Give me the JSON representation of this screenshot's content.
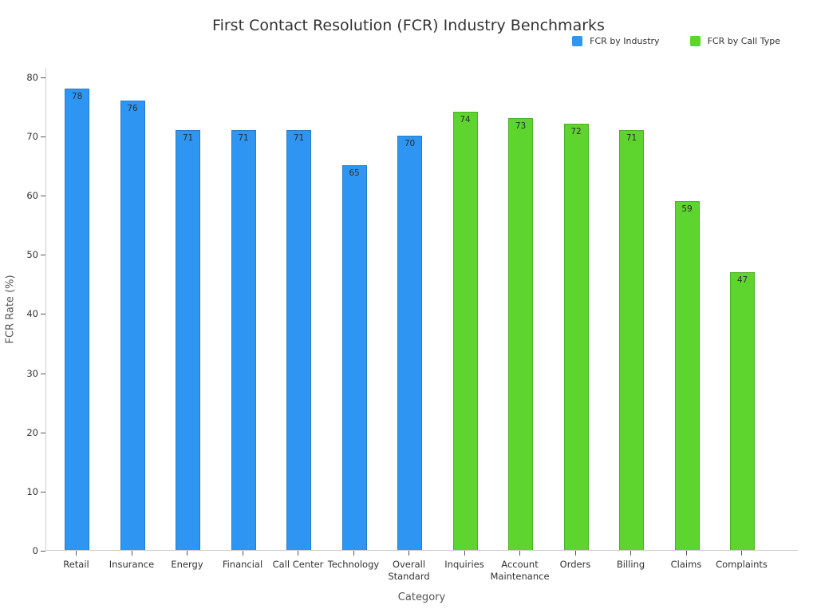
{
  "chart_data": {
    "type": "bar",
    "title": "First Contact Resolution (FCR) Industry Benchmarks",
    "xlabel": "Category",
    "ylabel": "FCR Rate (%)",
    "ylim": [
      0,
      81.6
    ],
    "yticks": [
      0,
      10,
      20,
      30,
      40,
      50,
      60,
      70,
      80
    ],
    "grid": false,
    "legend_position": "top-right",
    "bar_label_placement": "inside-top",
    "categories": [
      "Retail",
      "Insurance",
      "Energy",
      "Financial",
      "Call Center",
      "Technology",
      "Overall Standard",
      "Inquiries",
      "Account Maintenance",
      "Orders",
      "Billing",
      "Claims",
      "Complaints"
    ],
    "series": [
      {
        "name": "FCR by Industry",
        "color": "#2E96F2",
        "categories": [
          "Retail",
          "Insurance",
          "Energy",
          "Financial",
          "Call Center",
          "Technology",
          "Overall Standard"
        ],
        "values": [
          78,
          76,
          71,
          71,
          71,
          65,
          70
        ]
      },
      {
        "name": "FCR by Call Type",
        "color": "#5ED52F",
        "categories": [
          "Inquiries",
          "Account Maintenance",
          "Orders",
          "Billing",
          "Claims",
          "Complaints"
        ],
        "values": [
          74,
          73,
          72,
          71,
          59,
          47
        ]
      }
    ],
    "wrap_labels": [
      "Overall Standard",
      "Account Maintenance"
    ]
  },
  "colors": {
    "industry_bar": "#2E96F2",
    "call_type_bar": "#5ED52F",
    "spine": "#cccccc",
    "tick_text": "#333333",
    "axis_title_text": "#555555",
    "title_text": "#333333"
  }
}
